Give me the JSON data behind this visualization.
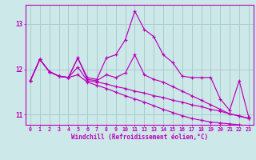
{
  "xlabel": "Windchill (Refroidissement éolien,°C)",
  "background_color": "#cce8e8",
  "grid_color": "#aacccc",
  "line_color": "#bb00bb",
  "xlim": [
    -0.5,
    23.5
  ],
  "ylim": [
    10.78,
    13.42
  ],
  "yticks": [
    11,
    12,
    13
  ],
  "xticks": [
    0,
    1,
    2,
    3,
    4,
    5,
    6,
    7,
    8,
    9,
    10,
    11,
    12,
    13,
    14,
    15,
    16,
    17,
    18,
    19,
    20,
    21,
    22,
    23
  ],
  "series": [
    [
      11.75,
      12.22,
      11.95,
      11.85,
      11.82,
      12.25,
      11.82,
      11.78,
      12.25,
      12.32,
      12.65,
      13.28,
      12.88,
      12.72,
      12.32,
      12.15,
      11.85,
      11.82,
      11.82,
      11.82,
      11.35,
      11.1,
      11.75,
      10.95
    ],
    [
      11.75,
      12.22,
      11.95,
      11.85,
      11.82,
      12.25,
      11.78,
      11.75,
      11.88,
      11.82,
      11.92,
      12.32,
      11.88,
      11.78,
      11.72,
      11.62,
      11.52,
      11.42,
      11.32,
      11.22,
      11.12,
      11.02,
      10.97,
      10.92
    ],
    [
      11.75,
      12.22,
      11.95,
      11.85,
      11.82,
      12.05,
      11.75,
      11.72,
      11.68,
      11.62,
      11.58,
      11.52,
      11.48,
      11.42,
      11.38,
      11.32,
      11.28,
      11.22,
      11.18,
      11.12,
      11.08,
      11.02,
      10.98,
      10.92
    ],
    [
      11.75,
      12.22,
      11.95,
      11.85,
      11.82,
      11.88,
      11.72,
      11.65,
      11.58,
      11.5,
      11.42,
      11.35,
      11.28,
      11.2,
      11.12,
      11.05,
      10.98,
      10.92,
      10.88,
      10.84,
      10.82,
      10.8,
      10.78,
      10.75
    ]
  ]
}
